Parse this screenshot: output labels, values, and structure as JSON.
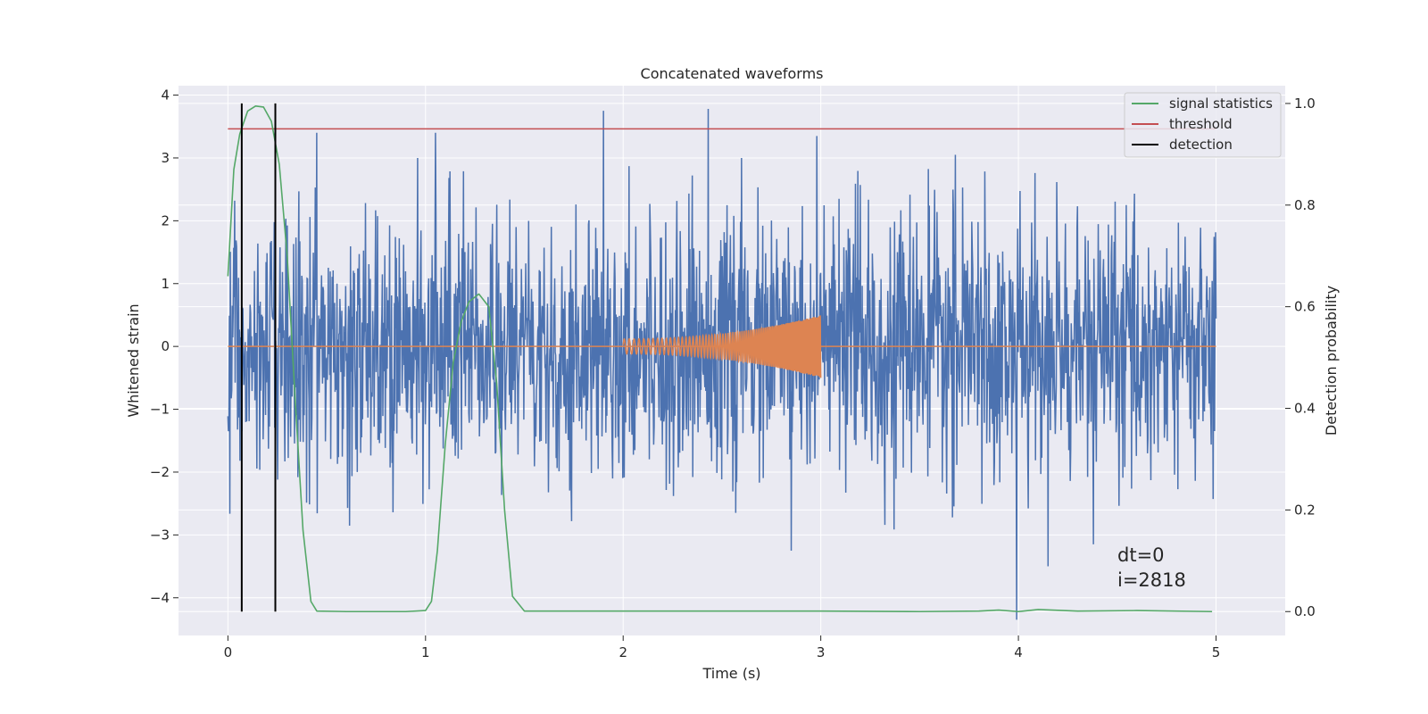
{
  "chart_data": {
    "type": "line",
    "title": "Concatenated waveforms",
    "xlabel": "Time (s)",
    "ylabel": "Whitened strain",
    "ylabel_right": "Detection probability",
    "xlim": [
      -0.25,
      5.35
    ],
    "ylim": [
      -4.6,
      4.15
    ],
    "ylim_right": [
      -0.047,
      1.035
    ],
    "xticks": [
      0,
      1,
      2,
      3,
      4,
      5
    ],
    "xtick_labels": [
      "0",
      "1",
      "2",
      "3",
      "4",
      "5"
    ],
    "yticks": [
      -4,
      -3,
      -2,
      -1,
      0,
      1,
      2,
      3,
      4
    ],
    "ytick_labels": [
      "−4",
      "−3",
      "−2",
      "−1",
      "0",
      "1",
      "2",
      "3",
      "4"
    ],
    "yticks_right": [
      0.0,
      0.2,
      0.4,
      0.6,
      0.8,
      1.0
    ],
    "ytick_labels_right": [
      "0.0",
      "0.2",
      "0.4",
      "0.6",
      "0.8",
      "1.0"
    ],
    "grid": true,
    "legend_position": "top-right",
    "legend": [
      {
        "label": "signal statistics",
        "color": "#55a868"
      },
      {
        "label": "threshold",
        "color": "#c44e52"
      },
      {
        "label": "detection",
        "color": "#000000"
      }
    ],
    "series": [
      {
        "name": "whitened strain (noise)",
        "color": "#4c72b0",
        "axis": "left",
        "x_range": [
          0,
          5
        ],
        "n_points": 2048,
        "typical_amplitude": 1.0,
        "notable_spikes": [
          {
            "x": 0.45,
            "y": 3.4
          },
          {
            "x": 1.05,
            "y": 3.4
          },
          {
            "x": 1.9,
            "y": 3.75
          },
          {
            "x": 2.43,
            "y": 3.78
          },
          {
            "x": 2.98,
            "y": 3.35
          },
          {
            "x": 3.68,
            "y": 3.05
          },
          {
            "x": 3.99,
            "y": -4.35
          },
          {
            "x": 4.15,
            "y": -3.5
          },
          {
            "x": 4.38,
            "y": -3.15
          },
          {
            "x": 2.85,
            "y": -3.25
          }
        ]
      },
      {
        "name": "injected chirp",
        "color": "#dd8452",
        "axis": "left",
        "x_range": [
          2.0,
          3.0
        ],
        "amplitude_start": 0.12,
        "amplitude_end": 0.5,
        "baseline_x_range": [
          0,
          5
        ],
        "baseline_y": 0
      },
      {
        "name": "signal statistics",
        "color": "#55a868",
        "axis": "right",
        "x": [
          0.0,
          0.03,
          0.06,
          0.1,
          0.14,
          0.18,
          0.22,
          0.26,
          0.3,
          0.34,
          0.38,
          0.42,
          0.45,
          0.6,
          0.9,
          1.0,
          1.03,
          1.06,
          1.1,
          1.14,
          1.18,
          1.22,
          1.27,
          1.32,
          1.36,
          1.4,
          1.44,
          1.5,
          2.0,
          3.0,
          3.5,
          3.8,
          3.9,
          4.0,
          4.1,
          4.3,
          4.6,
          4.98
        ],
        "y": [
          0.66,
          0.87,
          0.94,
          0.985,
          0.995,
          0.993,
          0.965,
          0.88,
          0.7,
          0.42,
          0.16,
          0.02,
          0.001,
          0.0,
          0.0,
          0.002,
          0.02,
          0.12,
          0.33,
          0.49,
          0.57,
          0.61,
          0.625,
          0.6,
          0.45,
          0.2,
          0.03,
          0.001,
          0.001,
          0.001,
          0.0,
          0.001,
          0.003,
          0.0,
          0.004,
          0.001,
          0.002,
          0.0
        ]
      },
      {
        "name": "threshold",
        "color": "#c44e52",
        "axis": "right",
        "x": [
          0,
          5
        ],
        "y": [
          0.95,
          0.95
        ]
      }
    ],
    "detections": [
      0.07,
      0.24
    ],
    "detection_range_right": [
      0.0,
      1.0
    ],
    "annotations": [
      "dt=0",
      "i=2818"
    ],
    "annotation_anchor": {
      "x": 4.5,
      "y": -3.55
    }
  }
}
